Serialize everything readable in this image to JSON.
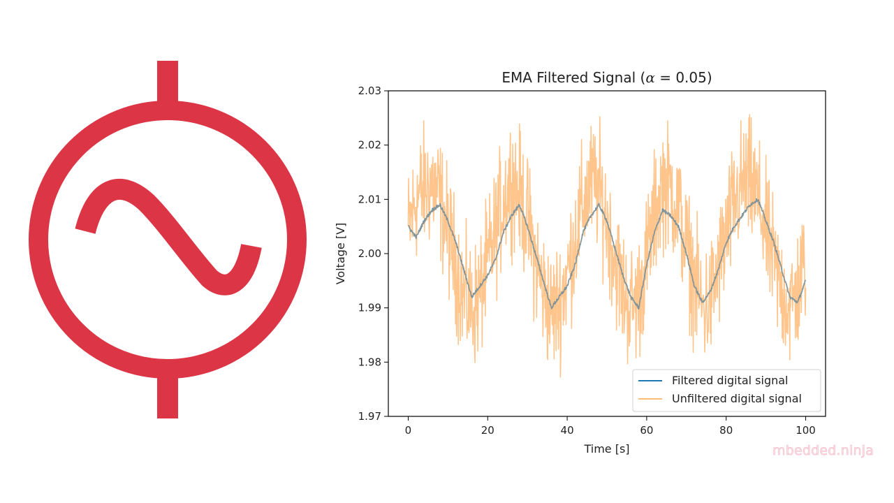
{
  "logo": {
    "color": "#dc3545",
    "icon": "ac-source-icon"
  },
  "watermark": "mbedded.ninja",
  "chart_data": {
    "type": "line",
    "title": "EMA Filtered Signal (α = 0.05)",
    "title_prefix": "EMA Filtered Signal (",
    "title_symbol": "α",
    "title_suffix": " = 0.05)",
    "xlabel": "Time [s]",
    "ylabel": "Voltage [V]",
    "xlim": [
      -5,
      105
    ],
    "ylim": [
      1.97,
      2.03
    ],
    "xticks": [
      0,
      20,
      40,
      60,
      80,
      100
    ],
    "xtick_labels": [
      "0",
      "20",
      "40",
      "60",
      "80",
      "100"
    ],
    "yticks": [
      1.97,
      1.98,
      1.99,
      2.0,
      2.01,
      2.02,
      2.03
    ],
    "ytick_labels": [
      "1.97",
      "1.98",
      "1.99",
      "2.00",
      "2.01",
      "2.02",
      "2.03"
    ],
    "grid": false,
    "legend_position": "lower-right",
    "x_step": 0.1,
    "series": [
      {
        "name": "Filtered digital signal",
        "color": "#1f77b4",
        "x": [
          0,
          2,
          4,
          6,
          8,
          10,
          12,
          14,
          16,
          18,
          20,
          22,
          24,
          26,
          28,
          30,
          32,
          34,
          36,
          38,
          40,
          42,
          44,
          46,
          48,
          50,
          52,
          54,
          56,
          58,
          60,
          62,
          64,
          66,
          68,
          70,
          72,
          74,
          76,
          78,
          80,
          82,
          84,
          86,
          88,
          90,
          92,
          94,
          96,
          98,
          100
        ],
        "values": [
          2.005,
          2.003,
          2.006,
          2.008,
          2.009,
          2.006,
          2.002,
          1.997,
          1.992,
          1.994,
          1.996,
          1.999,
          2.004,
          2.007,
          2.009,
          2.005,
          2.0,
          1.995,
          1.99,
          1.992,
          1.994,
          1.998,
          2.004,
          2.007,
          2.009,
          2.006,
          2.001,
          1.996,
          1.992,
          1.99,
          1.998,
          2.004,
          2.008,
          2.007,
          2.005,
          2.0,
          1.994,
          1.991,
          1.993,
          1.997,
          2.002,
          2.005,
          2.007,
          2.009,
          2.01,
          2.006,
          2.002,
          1.997,
          1.992,
          1.991,
          1.995
        ]
      },
      {
        "name": "Unfiltered digital signal",
        "color": "#ffbb78",
        "opacity": 0.85,
        "x": [
          0,
          2,
          4,
          6,
          8,
          10,
          12,
          14,
          16,
          18,
          20,
          22,
          24,
          26,
          28,
          30,
          32,
          34,
          36,
          38,
          40,
          42,
          44,
          46,
          48,
          50,
          52,
          54,
          56,
          58,
          60,
          62,
          64,
          66,
          68,
          70,
          72,
          74,
          76,
          78,
          80,
          82,
          84,
          86,
          88,
          90,
          92,
          94,
          96,
          98,
          100
        ],
        "values": [
          2.004,
          2.01,
          2.012,
          2.013,
          2.01,
          2.004,
          1.998,
          1.992,
          1.99,
          1.992,
          1.998,
          2.004,
          2.01,
          2.014,
          2.011,
          2.006,
          1.999,
          1.993,
          1.989,
          1.991,
          1.996,
          2.003,
          2.009,
          2.013,
          2.012,
          2.006,
          1.999,
          1.993,
          1.99,
          1.992,
          1.999,
          2.007,
          2.013,
          2.012,
          2.008,
          2.001,
          1.995,
          1.99,
          1.991,
          1.997,
          2.003,
          2.009,
          2.013,
          2.013,
          2.01,
          2.004,
          1.998,
          1.993,
          1.99,
          1.993,
          1.999
        ],
        "noise_amplitude": 0.009
      }
    ]
  }
}
